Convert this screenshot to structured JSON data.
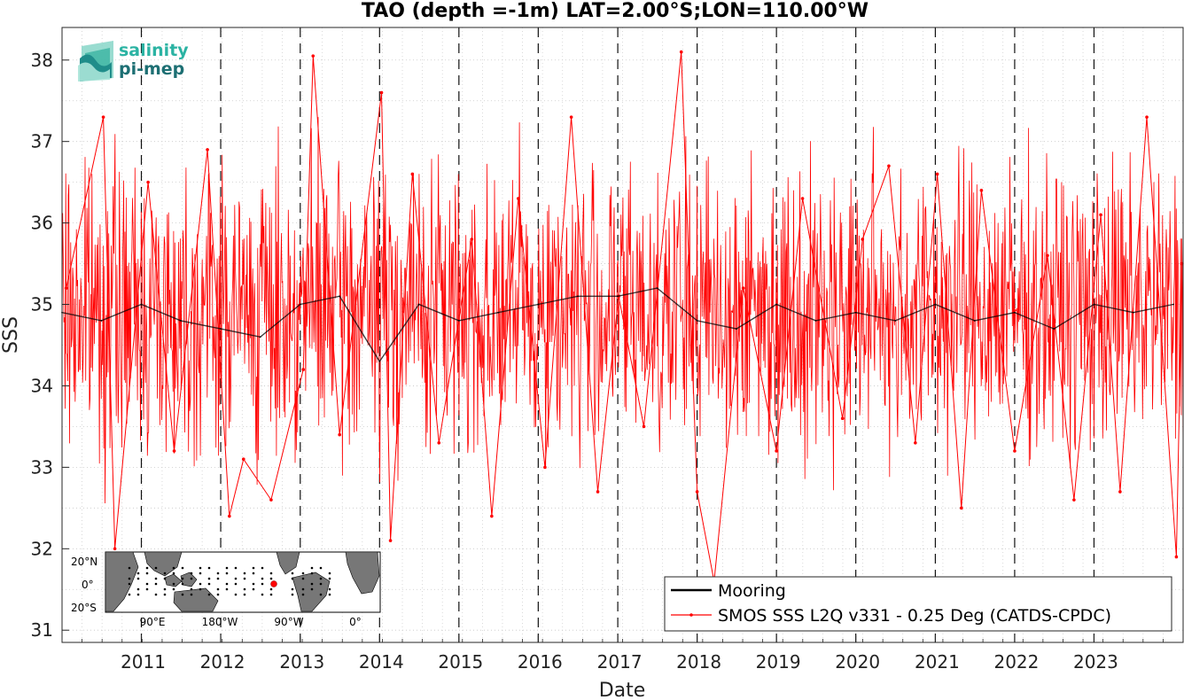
{
  "chart_data": {
    "type": "line",
    "title": "TAO (depth =-1m) LAT=2.00°S;LON=110.00°W",
    "xlabel": "Date",
    "ylabel": "SSS",
    "xlim": [
      "2010-01-01",
      "2024-02-15"
    ],
    "ylim": [
      30.85,
      38.4
    ],
    "x_ticks": [
      "2011",
      "2012",
      "2013",
      "2014",
      "2015",
      "2016",
      "2017",
      "2018",
      "2019",
      "2020",
      "2021",
      "2022",
      "2023"
    ],
    "y_ticks": [
      31,
      32,
      33,
      34,
      35,
      36,
      37,
      38
    ],
    "grid": "dotted",
    "year_boundaries": "dashed",
    "legend_position": "bottom-right",
    "series": [
      {
        "name": "Mooring",
        "color": "#000000",
        "x": [
          "2010-01-01",
          "2010-07-01",
          "2011-01-01",
          "2011-07-01",
          "2012-01-01",
          "2012-07-01",
          "2013-01-01",
          "2013-07-01",
          "2014-01-01",
          "2014-07-01",
          "2015-01-01",
          "2015-07-01",
          "2016-01-01",
          "2016-07-01",
          "2017-01-01",
          "2017-07-01",
          "2018-01-01",
          "2018-07-01",
          "2019-01-01",
          "2019-07-01",
          "2020-01-01",
          "2020-07-01",
          "2021-01-01",
          "2021-07-01",
          "2022-01-01",
          "2022-07-01",
          "2023-01-01",
          "2023-07-01",
          "2024-01-01"
        ],
        "y": [
          34.9,
          34.8,
          35.0,
          34.8,
          34.7,
          34.6,
          35.0,
          35.1,
          34.3,
          35.0,
          34.8,
          34.9,
          35.0,
          35.1,
          35.1,
          35.2,
          34.8,
          34.7,
          35.0,
          34.8,
          34.9,
          34.8,
          35.0,
          34.8,
          34.9,
          34.7,
          35.0,
          34.9,
          35.0
        ]
      },
      {
        "name": "SMOS SSS L2Q v331 - 0.25 Deg (CATDS-CPDC)",
        "color": "#ff0000",
        "x": [
          "2010-01-20",
          "2010-07-10",
          "2010-09-01",
          "2011-02-01",
          "2011-06-01",
          "2011-11-01",
          "2012-02-10",
          "2012-04-15",
          "2012-08-20",
          "2013-01-15",
          "2013-03-01",
          "2013-07-01",
          "2014-01-10",
          "2014-02-20",
          "2014-06-01",
          "2014-10-01",
          "2015-03-01",
          "2015-06-01",
          "2015-10-01",
          "2016-02-01",
          "2016-06-01",
          "2016-10-01",
          "2017-01-05",
          "2017-05-01",
          "2017-10-20",
          "2018-01-01",
          "2018-03-20",
          "2018-08-01",
          "2019-01-01",
          "2019-05-01",
          "2019-11-01",
          "2020-02-01",
          "2020-06-01",
          "2020-10-01",
          "2021-01-10",
          "2021-05-01",
          "2021-08-01",
          "2022-01-01",
          "2022-06-01",
          "2022-10-01",
          "2023-02-01",
          "2023-05-01",
          "2023-09-01",
          "2024-01-15",
          "2024-02-10"
        ],
        "y": [
          35.2,
          37.3,
          32.0,
          36.5,
          33.2,
          36.9,
          32.4,
          33.1,
          32.6,
          34.2,
          38.05,
          33.4,
          37.6,
          32.1,
          36.6,
          33.3,
          35.8,
          32.4,
          36.3,
          33.0,
          37.3,
          32.7,
          35.1,
          33.5,
          38.1,
          32.7,
          31.6,
          35.2,
          33.2,
          36.3,
          33.6,
          35.8,
          36.7,
          33.3,
          36.6,
          32.5,
          36.4,
          33.2,
          35.6,
          32.6,
          36.1,
          32.7,
          37.3,
          31.9,
          35.5
        ]
      }
    ]
  },
  "legend": {
    "mooring_label": "Mooring",
    "smos_label": "SMOS SSS L2Q v331 - 0.25 Deg (CATDS-CPDC)"
  },
  "logo": {
    "line1": "salinity",
    "line2": "pi-mep"
  },
  "inset_map": {
    "lat_labels": [
      "20°N",
      "0°",
      "20°S"
    ],
    "lon_labels": [
      "90°E",
      "180°W",
      "90°W",
      "0°"
    ],
    "marker_color": "#ff0000"
  }
}
